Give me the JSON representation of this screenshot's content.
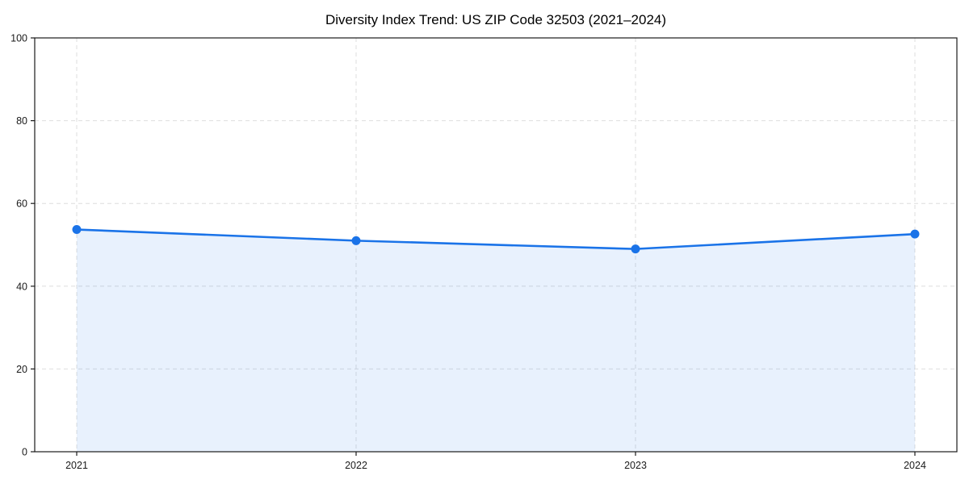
{
  "chart_data": {
    "type": "line",
    "title": "Diversity Index Trend: US ZIP Code 32503 (2021–2024)",
    "categories": [
      "2021",
      "2022",
      "2023",
      "2024"
    ],
    "x": [
      2021,
      2022,
      2023,
      2024
    ],
    "series": [
      {
        "name": "Diversity Index",
        "values": [
          53.7,
          51.0,
          49.0,
          52.6
        ]
      }
    ],
    "xlabel": "",
    "ylabel": "",
    "ylim": [
      0,
      100
    ],
    "yticks": [
      0,
      20,
      40,
      60,
      80,
      100
    ],
    "grid": true,
    "grid_style": "dashed",
    "legend": false,
    "marker": "circle",
    "colors": {
      "line": "#1a73e8",
      "marker": "#1a73e8",
      "fill": "#1a73e8",
      "fill_opacity": 0.1,
      "grid": "#dedede",
      "spine": "#1a1a1a",
      "background": "#ffffff",
      "text": "#1a1a1a"
    }
  }
}
